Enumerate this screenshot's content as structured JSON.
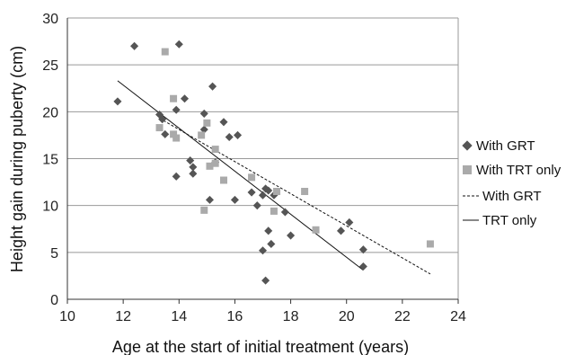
{
  "chart_data": {
    "type": "scatter",
    "title": "",
    "xlabel": "Age at the start of initial treatment (years)",
    "ylabel": "Height gain during puberty (cm)",
    "xlim": [
      10,
      24
    ],
    "ylim": [
      0,
      30
    ],
    "xticks": [
      "10",
      "12",
      "14",
      "16",
      "18",
      "20",
      "22",
      "24"
    ],
    "yticks": [
      "0",
      "5",
      "10",
      "15",
      "20",
      "25",
      "30"
    ],
    "grid": "horizontal",
    "legend_position": "right",
    "series": [
      {
        "name": "With GRT",
        "marker": "diamond",
        "color": "#555555",
        "points": [
          [
            11.8,
            21.1
          ],
          [
            12.4,
            27.0
          ],
          [
            13.3,
            19.7
          ],
          [
            13.4,
            19.2
          ],
          [
            13.5,
            17.6
          ],
          [
            13.9,
            20.2
          ],
          [
            14.0,
            27.2
          ],
          [
            14.2,
            21.4
          ],
          [
            13.9,
            13.1
          ],
          [
            14.4,
            14.8
          ],
          [
            14.5,
            14.1
          ],
          [
            14.5,
            13.4
          ],
          [
            14.9,
            19.8
          ],
          [
            14.9,
            18.1
          ],
          [
            15.2,
            22.7
          ],
          [
            15.3,
            14.6
          ],
          [
            15.6,
            18.9
          ],
          [
            15.8,
            17.3
          ],
          [
            16.1,
            17.5
          ],
          [
            15.1,
            10.6
          ],
          [
            16.0,
            10.6
          ],
          [
            16.6,
            11.4
          ],
          [
            16.8,
            10.0
          ],
          [
            17.0,
            11.1
          ],
          [
            17.1,
            11.8
          ],
          [
            17.2,
            11.6
          ],
          [
            17.4,
            11.1
          ],
          [
            17.0,
            5.2
          ],
          [
            17.2,
            7.3
          ],
          [
            17.3,
            5.9
          ],
          [
            17.8,
            9.3
          ],
          [
            18.0,
            6.8
          ],
          [
            17.1,
            2.0
          ],
          [
            19.8,
            7.3
          ],
          [
            20.1,
            8.2
          ],
          [
            20.6,
            5.3
          ],
          [
            20.6,
            3.5
          ]
        ]
      },
      {
        "name": "With TRT only",
        "marker": "square",
        "color": "#aaaaaa",
        "points": [
          [
            13.3,
            18.3
          ],
          [
            13.5,
            26.4
          ],
          [
            13.8,
            21.4
          ],
          [
            13.8,
            17.6
          ],
          [
            13.9,
            17.2
          ],
          [
            14.8,
            17.5
          ],
          [
            14.9,
            9.5
          ],
          [
            15.0,
            18.8
          ],
          [
            15.1,
            14.2
          ],
          [
            15.3,
            16.0
          ],
          [
            15.3,
            14.5
          ],
          [
            15.6,
            12.7
          ],
          [
            16.6,
            13.0
          ],
          [
            17.4,
            9.4
          ],
          [
            17.5,
            11.5
          ],
          [
            18.5,
            11.5
          ],
          [
            18.9,
            7.4
          ],
          [
            23.0,
            5.9
          ]
        ]
      }
    ],
    "trendlines": [
      {
        "name": "With GRT",
        "style": "dashed",
        "from": [
          13.3,
          19.3
        ],
        "to": [
          23.0,
          2.7
        ]
      },
      {
        "name": "TRT only",
        "style": "solid",
        "from": [
          11.8,
          23.3
        ],
        "to": [
          20.6,
          3.1
        ]
      }
    ]
  }
}
